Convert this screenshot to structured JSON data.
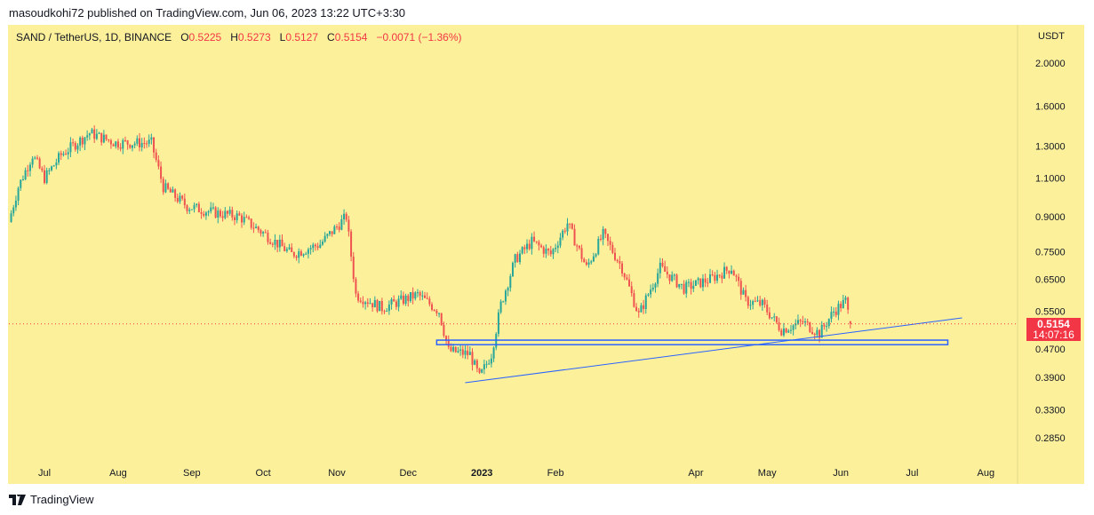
{
  "publisher_line": "masoudkohi72 published on TradingView.com, Jun 06, 2023 13:22 UTC+3:30",
  "legend": {
    "symbol": "SAND / TetherUS, 1D, BINANCE",
    "o_label": "O",
    "o": "0.5225",
    "h_label": "H",
    "h": "0.5273",
    "l_label": "L",
    "l": "0.5127",
    "c_label": "C",
    "c": "0.5154",
    "change": "−0.0071 (−1.36%)"
  },
  "currency": "USDT",
  "last_price": "0.5154",
  "countdown": "14:07:16",
  "footer_brand": "TradingView",
  "colors": {
    "up": "#26a69a",
    "down": "#ef5350",
    "bg": "#fdf09b",
    "annotation": "#2962ff"
  },
  "chart_data": {
    "type": "candlestick",
    "title": "SAND / TetherUS, 1D, BINANCE",
    "yscale": "log",
    "ylim": [
      0.265,
      2.35
    ],
    "yticks": [
      "2.0000",
      "1.6000",
      "1.3000",
      "1.1000",
      "0.9000",
      "0.7500",
      "0.6500",
      "0.5500",
      "0.4700",
      "0.3900",
      "0.3300",
      "0.2850"
    ],
    "xticks": [
      {
        "label": "Jul",
        "day": 0
      },
      {
        "label": "Aug",
        "day": 31
      },
      {
        "label": "Sep",
        "day": 62
      },
      {
        "label": "Oct",
        "day": 92
      },
      {
        "label": "Nov",
        "day": 123
      },
      {
        "label": "Dec",
        "day": 153
      },
      {
        "label": "2023",
        "day": 184
      },
      {
        "label": "Feb",
        "day": 215
      },
      {
        "label": "Apr",
        "day": 274
      },
      {
        "label": "May",
        "day": 304
      },
      {
        "label": "Jun",
        "day": 335
      },
      {
        "label": "Jul",
        "day": 365
      },
      {
        "label": "Aug",
        "day": 396
      }
    ],
    "xrange_days": [
      -15,
      406
    ],
    "close_path": [
      [
        -15,
        0.875
      ],
      [
        -11,
        1.05
      ],
      [
        -5,
        1.24
      ],
      [
        0,
        1.1
      ],
      [
        7,
        1.24
      ],
      [
        19,
        1.39
      ],
      [
        30,
        1.32
      ],
      [
        45,
        1.32
      ],
      [
        50,
        1.05
      ],
      [
        60,
        0.95
      ],
      [
        71,
        0.92
      ],
      [
        82,
        0.9
      ],
      [
        93,
        0.82
      ],
      [
        104,
        0.74
      ],
      [
        116,
        0.78
      ],
      [
        127,
        0.9
      ],
      [
        131,
        0.6
      ],
      [
        142,
        0.56
      ],
      [
        157,
        0.6
      ],
      [
        166,
        0.55
      ],
      [
        170,
        0.448
      ],
      [
        179,
        0.44
      ],
      [
        183,
        0.39
      ],
      [
        188,
        0.44
      ],
      [
        192,
        0.57
      ],
      [
        198,
        0.72
      ],
      [
        205,
        0.79
      ],
      [
        213,
        0.74
      ],
      [
        220,
        0.87
      ],
      [
        228,
        0.69
      ],
      [
        235,
        0.82
      ],
      [
        243,
        0.69
      ],
      [
        250,
        0.54
      ],
      [
        259,
        0.69
      ],
      [
        269,
        0.62
      ],
      [
        280,
        0.65
      ],
      [
        289,
        0.69
      ],
      [
        295,
        0.58
      ],
      [
        302,
        0.57
      ],
      [
        310,
        0.5
      ],
      [
        319,
        0.52
      ],
      [
        326,
        0.49
      ],
      [
        332,
        0.55
      ],
      [
        337,
        0.58
      ],
      [
        339,
        0.5154
      ]
    ],
    "annotations": {
      "support_zone": [
        0.4625,
        0.4735
      ],
      "support_zone_days": [
        165,
        380
      ],
      "trendline": [
        [
          177,
          0.3795
        ],
        [
          386,
          0.5315
        ]
      ]
    }
  }
}
